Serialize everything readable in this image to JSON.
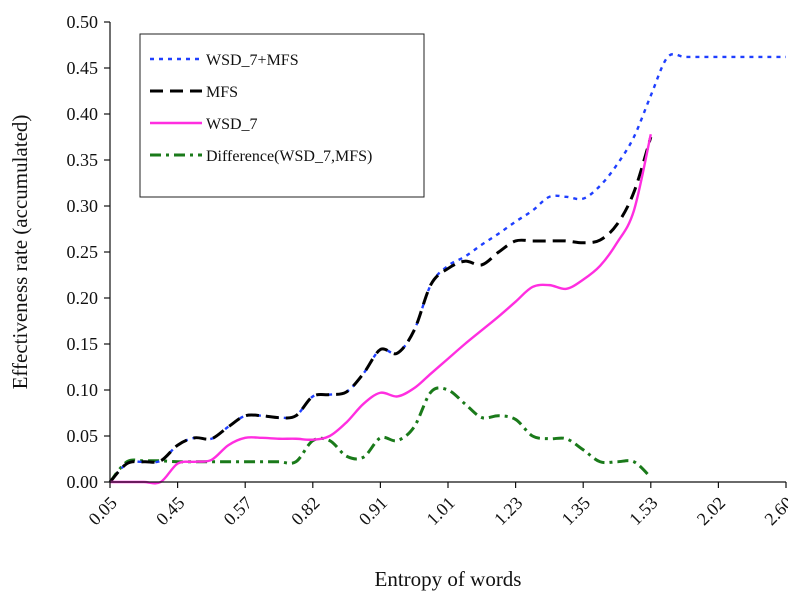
{
  "chart_data": {
    "type": "line",
    "title": "",
    "xlabel": "Entropy of words",
    "ylabel": "Effectiveness rate (accumulated)",
    "x_tick_labels": [
      "0.05",
      "0.45",
      "0.57",
      "0.82",
      "0.91",
      "1.01",
      "1.23",
      "1.35",
      "1.53",
      "2.02",
      "2.60"
    ],
    "x_axis": "categorical positions (tick labels only)",
    "ylim": [
      0,
      0.5
    ],
    "y_ticks": [
      "0.00",
      "0.05",
      "0.10",
      "0.15",
      "0.20",
      "0.25",
      "0.30",
      "0.35",
      "0.40",
      "0.45",
      "0.50"
    ],
    "grid": false,
    "legend": "top-left (inside plot, boxed)",
    "series": [
      {
        "name": "WSD_7+MFS",
        "color": "#1f3fff",
        "dash": "dotted",
        "x": [
          0,
          0.25,
          0.5,
          0.75,
          1,
          1.25,
          1.5,
          1.75,
          2,
          2.25,
          2.5,
          2.75,
          3,
          3.25,
          3.5,
          3.75,
          4,
          4.25,
          4.5,
          4.75,
          5,
          5.25,
          5.5,
          5.75,
          6,
          6.25,
          6.5,
          6.75,
          7,
          7.25,
          7.5,
          7.75,
          8,
          8.25,
          8.5,
          8.75,
          9,
          9.25,
          9.5,
          9.75,
          10
        ],
        "values": [
          0,
          0.02,
          0.022,
          0.023,
          0.04,
          0.048,
          0.047,
          0.06,
          0.072,
          0.072,
          0.07,
          0.072,
          0.093,
          0.095,
          0.098,
          0.118,
          0.144,
          0.14,
          0.165,
          0.215,
          0.235,
          0.245,
          0.258,
          0.27,
          0.283,
          0.295,
          0.31,
          0.31,
          0.308,
          0.322,
          0.345,
          0.375,
          0.42,
          0.462,
          0.462,
          0.462,
          0.462,
          0.462,
          0.462,
          0.462,
          0.462
        ]
      },
      {
        "name": "MFS",
        "color": "#000000",
        "dash": "dashed",
        "x": [
          0,
          0.25,
          0.5,
          0.75,
          1,
          1.25,
          1.5,
          1.75,
          2,
          2.25,
          2.5,
          2.75,
          3,
          3.25,
          3.5,
          3.75,
          4,
          4.25,
          4.5,
          4.75,
          5,
          5.25,
          5.5,
          5.75,
          6,
          6.25,
          6.5,
          6.75,
          7,
          7.25,
          7.5,
          7.75,
          8
        ],
        "values": [
          0,
          0.02,
          0.022,
          0.023,
          0.04,
          0.048,
          0.047,
          0.06,
          0.072,
          0.072,
          0.07,
          0.072,
          0.093,
          0.095,
          0.098,
          0.118,
          0.144,
          0.14,
          0.165,
          0.215,
          0.232,
          0.24,
          0.236,
          0.25,
          0.262,
          0.262,
          0.262,
          0.262,
          0.26,
          0.263,
          0.28,
          0.315,
          0.375
        ]
      },
      {
        "name": "WSD_7",
        "color": "#ff2ee0",
        "dash": "solid",
        "x": [
          0,
          0.25,
          0.5,
          0.75,
          1,
          1.25,
          1.5,
          1.75,
          2,
          2.25,
          2.5,
          2.75,
          3,
          3.25,
          3.5,
          3.75,
          4,
          4.25,
          4.5,
          4.75,
          5,
          5.25,
          5.5,
          5.75,
          6,
          6.25,
          6.5,
          6.75,
          7,
          7.25,
          7.5,
          7.75,
          8
        ],
        "values": [
          0,
          0,
          0,
          0,
          0.02,
          0.022,
          0.024,
          0.04,
          0.048,
          0.048,
          0.047,
          0.047,
          0.046,
          0.05,
          0.065,
          0.085,
          0.097,
          0.093,
          0.102,
          0.118,
          0.134,
          0.15,
          0.165,
          0.18,
          0.196,
          0.212,
          0.214,
          0.21,
          0.22,
          0.235,
          0.26,
          0.295,
          0.378
        ]
      },
      {
        "name": "Difference(WSD_7,MFS)",
        "color": "#1a7a1a",
        "dash": "dashdot",
        "x": [
          0,
          0.25,
          0.5,
          0.75,
          1,
          1.25,
          1.5,
          1.75,
          2,
          2.25,
          2.5,
          2.75,
          3,
          3.25,
          3.5,
          3.75,
          4,
          4.25,
          4.5,
          4.75,
          5,
          5.25,
          5.5,
          5.75,
          6,
          6.25,
          6.5,
          6.75,
          7,
          7.25,
          7.5,
          7.75,
          8
        ],
        "values": [
          0,
          0.022,
          0.023,
          0.023,
          0.022,
          0.022,
          0.022,
          0.022,
          0.022,
          0.022,
          0.022,
          0.022,
          0.045,
          0.045,
          0.028,
          0.027,
          0.048,
          0.045,
          0.06,
          0.098,
          0.1,
          0.085,
          0.07,
          0.072,
          0.068,
          0.05,
          0.047,
          0.047,
          0.035,
          0.022,
          0.022,
          0.022,
          0.005
        ]
      }
    ]
  }
}
